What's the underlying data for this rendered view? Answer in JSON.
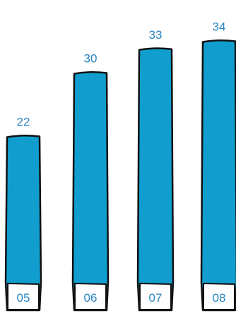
{
  "chart_data": {
    "type": "bar",
    "title": "",
    "xlabel": "",
    "ylabel": "",
    "categories": [
      "05",
      "06",
      "07",
      "08"
    ],
    "values": [
      22,
      30,
      33,
      34
    ],
    "data_labels": [
      "22",
      "30",
      "33",
      "34"
    ],
    "ylim": [
      0,
      35
    ],
    "grid": false,
    "legend": "none",
    "colors": {
      "bar": "#119ecf",
      "bar_outline": "#111111",
      "label": "#2a86c3",
      "category_box_fill": "#ffffff",
      "category_text": "#2a86c3"
    }
  }
}
